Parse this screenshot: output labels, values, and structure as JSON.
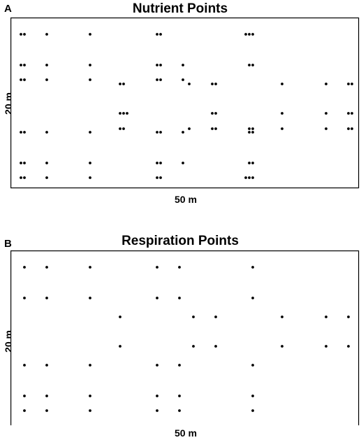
{
  "panels": [
    {
      "letter": "A",
      "title": "Nutrient Points",
      "xlabel": "50 m",
      "ylabel": "20 m"
    },
    {
      "letter": "B",
      "title": "Respiration Points",
      "xlabel": "50 m",
      "ylabel": "20 m"
    }
  ],
  "colors": {
    "points": "#000000",
    "frame": "#000000"
  }
}
